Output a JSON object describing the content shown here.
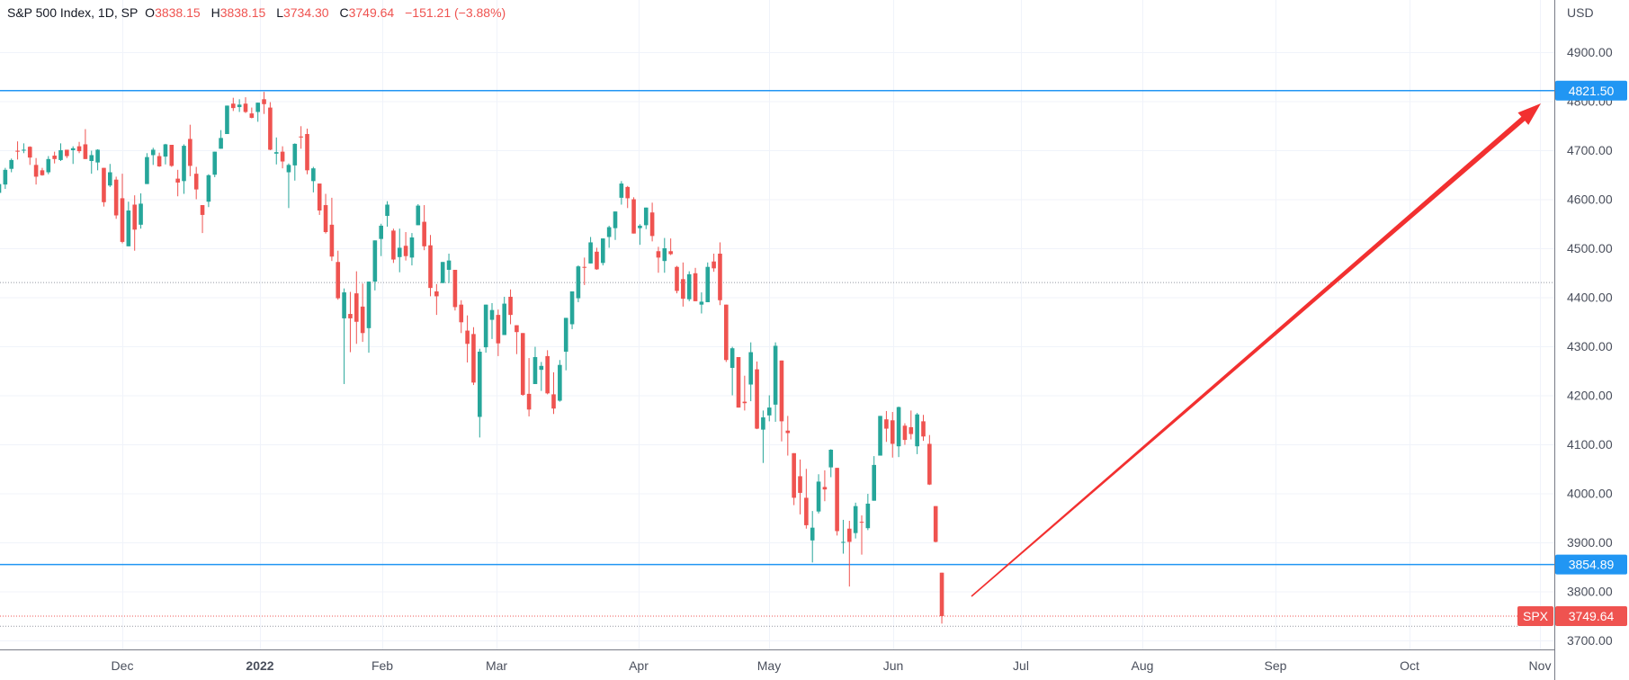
{
  "header": {
    "symbol": "S&P 500 Index, 1D, SP",
    "open_label": "O",
    "open": "3838.15",
    "high_label": "H",
    "high": "3838.15",
    "low_label": "L",
    "low": "3734.30",
    "close_label": "C",
    "close": "3749.64",
    "change": "−151.21 (−3.88%)"
  },
  "colors": {
    "up": "#26a69a",
    "down": "#ef5350",
    "line": "#2196f3",
    "arrow": "#f23030",
    "grid": "#f0f3fa"
  },
  "chart_data": {
    "type": "candlestick",
    "title": "S&P 500 Index, 1D, SP",
    "currency": "USD",
    "ylim": [
      3680,
      4960
    ],
    "y_ticks": [
      "4900.00",
      "4800.00",
      "4700.00",
      "4600.00",
      "4500.00",
      "4400.00",
      "4300.00",
      "4200.00",
      "4100.00",
      "4000.00",
      "3900.00",
      "3800.00",
      "3700.00"
    ],
    "x_ticks": [
      "Dec",
      "2022",
      "Feb",
      "Mar",
      "Apr",
      "May",
      "Jun",
      "Jul",
      "Aug",
      "Sep",
      "Oct",
      "Nov"
    ],
    "horizontal_lines": [
      {
        "price": 4821.5,
        "label": "4821.50",
        "style": "solid"
      },
      {
        "price": 3854.89,
        "label": "3854.89",
        "style": "solid"
      },
      {
        "price": 4430,
        "style": "dotted"
      }
    ],
    "last_price": {
      "symbol": "SPX",
      "price": 3749.64,
      "label": "3749.64"
    },
    "annotation": {
      "type": "arrow",
      "from": {
        "date": "2022-06-21",
        "price": 3790
      },
      "to": {
        "date": "2022-11-01",
        "price": 4790
      }
    },
    "candles": [
      [
        "2021-11-02",
        4613,
        4635,
        4604,
        4631
      ],
      [
        "2021-11-03",
        4630,
        4664,
        4621,
        4660
      ],
      [
        "2021-11-04",
        4662,
        4683,
        4655,
        4680
      ],
      [
        "2021-11-05",
        4699,
        4718,
        4681,
        4697
      ],
      [
        "2021-11-08",
        4701,
        4714,
        4694,
        4701
      ],
      [
        "2021-11-09",
        4707,
        4708,
        4670,
        4685
      ],
      [
        "2021-11-10",
        4670,
        4684,
        4630,
        4646
      ],
      [
        "2021-11-11",
        4659,
        4664,
        4648,
        4649
      ],
      [
        "2021-11-12",
        4655,
        4688,
        4651,
        4682
      ],
      [
        "2021-11-15",
        4689,
        4697,
        4673,
        4682
      ],
      [
        "2021-11-16",
        4680,
        4714,
        4678,
        4700
      ],
      [
        "2021-11-17",
        4701,
        4701,
        4684,
        4688
      ],
      [
        "2021-11-18",
        4700,
        4708,
        4672,
        4704
      ],
      [
        "2021-11-19",
        4708,
        4717,
        4694,
        4698
      ],
      [
        "2021-11-22",
        4712,
        4743,
        4682,
        4682
      ],
      [
        "2021-11-23",
        4678,
        4699,
        4652,
        4690
      ],
      [
        "2021-11-24",
        4675,
        4702,
        4659,
        4701
      ],
      [
        "2021-11-26",
        4664,
        4664,
        4585,
        4594
      ],
      [
        "2021-11-29",
        4628,
        4672,
        4625,
        4655
      ],
      [
        "2021-11-30",
        4640,
        4646,
        4560,
        4567
      ],
      [
        "2021-12-01",
        4602,
        4652,
        4510,
        4513
      ],
      [
        "2021-12-02",
        4504,
        4595,
        4504,
        4577
      ],
      [
        "2021-12-03",
        4589,
        4608,
        4495,
        4538
      ],
      [
        "2021-12-06",
        4548,
        4612,
        4540,
        4591
      ],
      [
        "2021-12-07",
        4631,
        4694,
        4631,
        4686
      ],
      [
        "2021-12-08",
        4690,
        4705,
        4670,
        4701
      ],
      [
        "2021-12-09",
        4688,
        4695,
        4666,
        4667
      ],
      [
        "2021-12-10",
        4687,
        4713,
        4671,
        4712
      ],
      [
        "2021-12-13",
        4711,
        4711,
        4666,
        4668
      ],
      [
        "2021-12-14",
        4642,
        4660,
        4606,
        4634
      ],
      [
        "2021-12-15",
        4637,
        4712,
        4611,
        4709
      ],
      [
        "2021-12-16",
        4723,
        4752,
        4647,
        4668
      ],
      [
        "2021-12-17",
        4652,
        4666,
        4600,
        4620
      ],
      [
        "2021-12-20",
        4588,
        4588,
        4531,
        4568
      ],
      [
        "2021-12-21",
        4595,
        4651,
        4584,
        4649
      ],
      [
        "2021-12-22",
        4650,
        4697,
        4645,
        4697
      ],
      [
        "2021-12-23",
        4703,
        4741,
        4703,
        4725
      ],
      [
        "2021-12-27",
        4733,
        4791,
        4733,
        4791
      ],
      [
        "2021-12-28",
        4795,
        4807,
        4780,
        4786
      ],
      [
        "2021-12-29",
        4788,
        4804,
        4778,
        4793
      ],
      [
        "2021-12-30",
        4795,
        4808,
        4776,
        4778
      ],
      [
        "2021-12-31",
        4775,
        4787,
        4765,
        4766
      ],
      [
        "2022-01-03",
        4778,
        4797,
        4758,
        4797
      ],
      [
        "2022-01-04",
        4804,
        4819,
        4774,
        4794
      ],
      [
        "2022-01-05",
        4787,
        4798,
        4700,
        4701
      ],
      [
        "2022-01-06",
        4693,
        4726,
        4671,
        4696
      ],
      [
        "2022-01-07",
        4697,
        4708,
        4663,
        4677
      ],
      [
        "2022-01-10",
        4655,
        4673,
        4582,
        4670
      ],
      [
        "2022-01-11",
        4669,
        4714,
        4638,
        4713
      ],
      [
        "2022-01-12",
        4728,
        4749,
        4703,
        4726
      ],
      [
        "2022-01-13",
        4733,
        4744,
        4651,
        4659
      ],
      [
        "2022-01-14",
        4637,
        4666,
        4614,
        4663
      ],
      [
        "2022-01-18",
        4632,
        4632,
        4568,
        4577
      ],
      [
        "2022-01-19",
        4588,
        4611,
        4530,
        4533
      ],
      [
        "2022-01-20",
        4548,
        4603,
        4474,
        4483
      ],
      [
        "2022-01-21",
        4472,
        4495,
        4395,
        4398
      ],
      [
        "2022-01-24",
        4357,
        4418,
        4223,
        4410
      ],
      [
        "2022-01-25",
        4366,
        4411,
        4288,
        4357
      ],
      [
        "2022-01-26",
        4408,
        4453,
        4305,
        4350
      ],
      [
        "2022-01-27",
        4381,
        4428,
        4309,
        4327
      ],
      [
        "2022-01-28",
        4337,
        4432,
        4287,
        4432
      ],
      [
        "2022-01-31",
        4432,
        4516,
        4414,
        4516
      ],
      [
        "2022-02-01",
        4519,
        4550,
        4484,
        4546
      ],
      [
        "2022-02-02",
        4566,
        4596,
        4544,
        4589
      ],
      [
        "2022-02-03",
        4536,
        4540,
        4470,
        4477
      ],
      [
        "2022-02-04",
        4482,
        4540,
        4451,
        4501
      ],
      [
        "2022-02-07",
        4505,
        4533,
        4475,
        4484
      ],
      [
        "2022-02-08",
        4481,
        4531,
        4465,
        4522
      ],
      [
        "2022-02-09",
        4547,
        4590,
        4547,
        4587
      ],
      [
        "2022-02-10",
        4554,
        4588,
        4496,
        4504
      ],
      [
        "2022-02-11",
        4506,
        4527,
        4402,
        4419
      ],
      [
        "2022-02-14",
        4412,
        4427,
        4364,
        4402
      ],
      [
        "2022-02-15",
        4429,
        4472,
        4429,
        4472
      ],
      [
        "2022-02-16",
        4456,
        4489,
        4429,
        4475
      ],
      [
        "2022-02-17",
        4456,
        4456,
        4373,
        4380
      ],
      [
        "2022-02-18",
        4385,
        4394,
        4327,
        4349
      ],
      [
        "2022-02-22",
        4332,
        4363,
        4267,
        4305
      ],
      [
        "2022-02-23",
        4325,
        4339,
        4221,
        4226
      ],
      [
        "2022-02-24",
        4156,
        4295,
        4114,
        4289
      ],
      [
        "2022-02-25",
        4298,
        4385,
        4287,
        4385
      ],
      [
        "2022-02-28",
        4354,
        4388,
        4315,
        4374
      ],
      [
        "2022-03-01",
        4364,
        4375,
        4280,
        4306
      ],
      [
        "2022-03-02",
        4323,
        4401,
        4323,
        4387
      ],
      [
        "2022-03-03",
        4401,
        4416,
        4345,
        4364
      ],
      [
        "2022-03-04",
        4343,
        4343,
        4284,
        4329
      ],
      [
        "2022-03-07",
        4327,
        4327,
        4199,
        4201
      ],
      [
        "2022-03-08",
        4203,
        4276,
        4157,
        4171
      ],
      [
        "2022-03-09",
        4223,
        4299,
        4223,
        4278
      ],
      [
        "2022-03-10",
        4252,
        4268,
        4209,
        4260
      ],
      [
        "2022-03-11",
        4280,
        4292,
        4202,
        4204
      ],
      [
        "2022-03-14",
        4202,
        4247,
        4162,
        4173
      ],
      [
        "2022-03-15",
        4189,
        4272,
        4187,
        4262
      ],
      [
        "2022-03-16",
        4289,
        4358,
        4251,
        4358
      ],
      [
        "2022-03-17",
        4345,
        4412,
        4335,
        4412
      ],
      [
        "2022-03-18",
        4398,
        4465,
        4390,
        4463
      ],
      [
        "2022-03-21",
        4462,
        4481,
        4425,
        4461
      ],
      [
        "2022-03-22",
        4469,
        4523,
        4469,
        4512
      ],
      [
        "2022-03-23",
        4493,
        4501,
        4456,
        4457
      ],
      [
        "2022-03-24",
        4470,
        4520,
        4465,
        4520
      ],
      [
        "2022-03-25",
        4523,
        4546,
        4501,
        4543
      ],
      [
        "2022-03-28",
        4541,
        4575,
        4517,
        4575
      ],
      [
        "2022-03-29",
        4603,
        4637,
        4589,
        4632
      ],
      [
        "2022-03-30",
        4625,
        4627,
        4582,
        4602
      ],
      [
        "2022-03-31",
        4600,
        4604,
        4530,
        4530
      ],
      [
        "2022-04-01",
        4541,
        4549,
        4507,
        4546
      ],
      [
        "2022-04-04",
        4547,
        4583,
        4539,
        4583
      ],
      [
        "2022-04-05",
        4573,
        4593,
        4514,
        4525
      ],
      [
        "2022-04-06",
        4494,
        4503,
        4450,
        4481
      ],
      [
        "2022-04-07",
        4474,
        4521,
        4450,
        4500
      ],
      [
        "2022-04-08",
        4494,
        4520,
        4486,
        4488
      ],
      [
        "2022-04-11",
        4462,
        4464,
        4408,
        4413
      ],
      [
        "2022-04-12",
        4437,
        4471,
        4381,
        4397
      ],
      [
        "2022-04-13",
        4396,
        4453,
        4392,
        4447
      ],
      [
        "2022-04-14",
        4449,
        4460,
        4392,
        4392
      ],
      [
        "2022-04-18",
        4385,
        4410,
        4367,
        4391
      ],
      [
        "2022-04-19",
        4390,
        4471,
        4390,
        4462
      ],
      [
        "2022-04-20",
        4473,
        4489,
        4452,
        4459
      ],
      [
        "2022-04-21",
        4489,
        4512,
        4384,
        4394
      ],
      [
        "2022-04-22",
        4385,
        4385,
        4268,
        4272
      ],
      [
        "2022-04-25",
        4256,
        4299,
        4200,
        4296
      ],
      [
        "2022-04-26",
        4278,
        4278,
        4175,
        4175
      ],
      [
        "2022-04-27",
        4187,
        4240,
        4169,
        4184
      ],
      [
        "2022-04-28",
        4222,
        4308,
        4188,
        4288
      ],
      [
        "2022-04-29",
        4253,
        4269,
        4131,
        4132
      ],
      [
        "2022-05-02",
        4130,
        4169,
        4062,
        4155
      ],
      [
        "2022-05-03",
        4159,
        4200,
        4147,
        4175
      ],
      [
        "2022-05-04",
        4181,
        4308,
        4146,
        4301
      ],
      [
        "2022-05-05",
        4271,
        4271,
        4106,
        4147
      ],
      [
        "2022-05-06",
        4128,
        4158,
        4077,
        4123
      ],
      [
        "2022-05-09",
        4082,
        4082,
        3976,
        3991
      ],
      [
        "2022-05-10",
        4035,
        4069,
        3957,
        4001
      ],
      [
        "2022-05-11",
        3991,
        4050,
        3928,
        3935
      ],
      [
        "2022-05-12",
        3904,
        3964,
        3859,
        3930
      ],
      [
        "2022-05-13",
        3963,
        4039,
        3959,
        4024
      ],
      [
        "2022-05-16",
        4013,
        4047,
        3984,
        4008
      ],
      [
        "2022-05-17",
        4053,
        4090,
        4033,
        4089
      ],
      [
        "2022-05-18",
        4052,
        4052,
        3914,
        3923
      ],
      [
        "2022-05-19",
        3900,
        3946,
        3877,
        3901
      ],
      [
        "2022-05-20",
        3928,
        3944,
        3810,
        3901
      ],
      [
        "2022-05-23",
        3919,
        3981,
        3908,
        3974
      ],
      [
        "2022-05-24",
        3942,
        3955,
        3875,
        3941
      ],
      [
        "2022-05-25",
        3929,
        3999,
        3925,
        3979
      ],
      [
        "2022-05-26",
        3985,
        4076,
        3985,
        4058
      ],
      [
        "2022-05-27",
        4077,
        4158,
        4077,
        4158
      ],
      [
        "2022-05-31",
        4151,
        4168,
        4105,
        4132
      ],
      [
        "2022-06-01",
        4149,
        4166,
        4073,
        4101
      ],
      [
        "2022-06-02",
        4096,
        4177,
        4074,
        4176
      ],
      [
        "2022-06-03",
        4138,
        4143,
        4099,
        4109
      ],
      [
        "2022-06-06",
        4135,
        4169,
        4110,
        4121
      ],
      [
        "2022-06-07",
        4096,
        4164,
        4080,
        4161
      ],
      [
        "2022-06-08",
        4147,
        4160,
        4107,
        4116
      ],
      [
        "2022-06-09",
        4101,
        4119,
        4017,
        4018
      ],
      [
        "2022-06-10",
        3974,
        3974,
        3900,
        3901
      ],
      [
        "2022-06-13",
        3838.15,
        3838.15,
        3734.3,
        3749.64
      ]
    ]
  }
}
